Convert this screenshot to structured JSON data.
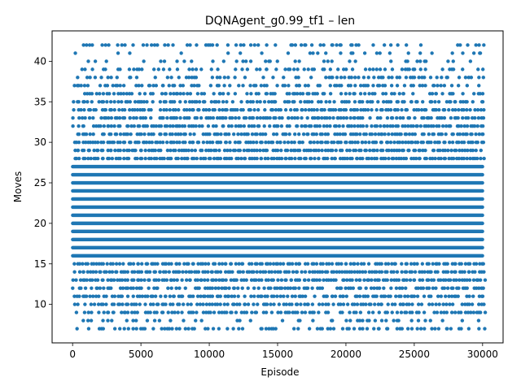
{
  "chart_data": {
    "type": "scatter",
    "title": "DQNAgent_g0.99_tf1 – len",
    "xlabel": "Episode",
    "ylabel": "Moves",
    "xlim": [
      -1500,
      31500
    ],
    "ylim": [
      5.25,
      43.75
    ],
    "x_ticks": [
      0,
      5000,
      10000,
      15000,
      20000,
      25000,
      30000
    ],
    "y_ticks": [
      10,
      15,
      20,
      25,
      30,
      35,
      40
    ],
    "grid": false,
    "legend": "none",
    "marker_color": "#1f77b4",
    "episodes": 30000,
    "value_range": [
      7,
      42
    ],
    "row_density": [
      {
        "y": 7,
        "density": 0.55
      },
      {
        "y": 8,
        "density": 0.3
      },
      {
        "y": 9,
        "density": 0.7
      },
      {
        "y": 10,
        "density": 0.8
      },
      {
        "y": 11,
        "density": 0.85
      },
      {
        "y": 12,
        "density": 0.75
      },
      {
        "y": 13,
        "density": 0.95
      },
      {
        "y": 14,
        "density": 0.95
      },
      {
        "y": 15,
        "density": 0.95
      },
      {
        "y": 16,
        "density": 1.0
      },
      {
        "y": 17,
        "density": 1.0
      },
      {
        "y": 18,
        "density": 1.0
      },
      {
        "y": 19,
        "density": 1.0
      },
      {
        "y": 20,
        "density": 1.0
      },
      {
        "y": 21,
        "density": 1.0
      },
      {
        "y": 22,
        "density": 1.0
      },
      {
        "y": 23,
        "density": 1.0
      },
      {
        "y": 24,
        "density": 1.0
      },
      {
        "y": 25,
        "density": 1.0
      },
      {
        "y": 26,
        "density": 1.0
      },
      {
        "y": 27,
        "density": 1.0
      },
      {
        "y": 28,
        "density": 0.98
      },
      {
        "y": 29,
        "density": 0.97
      },
      {
        "y": 30,
        "density": 0.95
      },
      {
        "y": 31,
        "density": 0.9
      },
      {
        "y": 32,
        "density": 0.9
      },
      {
        "y": 33,
        "density": 0.85
      },
      {
        "y": 34,
        "density": 0.85
      },
      {
        "y": 35,
        "density": 0.75
      },
      {
        "y": 36,
        "density": 0.65
      },
      {
        "y": 37,
        "density": 0.6
      },
      {
        "y": 38,
        "density": 0.45
      },
      {
        "y": 39,
        "density": 0.4
      },
      {
        "y": 40,
        "density": 0.3
      },
      {
        "y": 41,
        "density": 0.2
      },
      {
        "y": 42,
        "density": 0.35
      }
    ]
  }
}
